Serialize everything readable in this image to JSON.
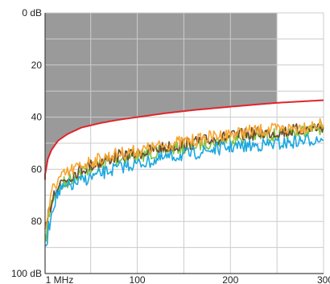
{
  "colors": {
    "background": "#ffffff",
    "plot_fill": "#ffffff",
    "grid": "#cccccc",
    "axis": "#444444",
    "shaded_region": "#9a9a9b",
    "limit_line": "#e0242b"
  },
  "chart_data": {
    "type": "line",
    "title": "",
    "xlabel": "",
    "ylabel": "",
    "x_tick_labels": [
      "1 MHz",
      "100",
      "200",
      "300"
    ],
    "x_tick_values": [
      1,
      100,
      200,
      300
    ],
    "y_tick_labels": [
      "0 dB",
      "20",
      "40",
      "60",
      "80",
      "100 dB"
    ],
    "y_tick_values": [
      0,
      20,
      40,
      60,
      80,
      100
    ],
    "xlim": [
      1,
      300
    ],
    "ylim": [
      100,
      0
    ],
    "y_axis_inverted": true,
    "grid": true,
    "legend": "none",
    "shaded_region": {
      "description": "gray area above limit line",
      "x_range": [
        1,
        250
      ],
      "color": "#9a9a9b"
    },
    "limit_line": {
      "color": "#e0242b",
      "x": [
        1,
        4,
        8,
        15,
        25,
        40,
        60,
        80,
        100,
        130,
        160,
        200,
        250,
        300
      ],
      "y": [
        62,
        56,
        52.5,
        49,
        46.5,
        44,
        42.3,
        41,
        40,
        38.5,
        37.3,
        36,
        34.5,
        33.5
      ]
    },
    "series": [
      {
        "color": "#7cc242",
        "x": [
          1,
          5,
          10,
          15,
          20,
          30,
          40,
          50,
          60,
          70,
          80,
          90,
          100,
          120,
          140,
          160,
          180,
          200,
          220,
          240,
          260,
          280,
          300
        ],
        "y": [
          88,
          78,
          70,
          67,
          66,
          63,
          61,
          59.5,
          58.5,
          57,
          56,
          55.5,
          55,
          53.5,
          52,
          51,
          49.5,
          48.5,
          47.5,
          47,
          46.5,
          45.5,
          44
        ]
      },
      {
        "color": "#6b4a2b",
        "x": [
          1,
          5,
          10,
          15,
          20,
          30,
          40,
          50,
          60,
          70,
          80,
          90,
          100,
          120,
          140,
          160,
          180,
          200,
          220,
          240,
          260,
          280,
          300
        ],
        "y": [
          86,
          77,
          69,
          66,
          64.5,
          62,
          60,
          58.5,
          57.5,
          56,
          55,
          54.5,
          54,
          52.5,
          51,
          50,
          48.5,
          47.5,
          46.5,
          46,
          45.5,
          44.5,
          43.5
        ]
      },
      {
        "color": "#f7a531",
        "x": [
          1,
          5,
          10,
          15,
          20,
          30,
          40,
          50,
          60,
          70,
          80,
          90,
          100,
          120,
          140,
          160,
          180,
          200,
          220,
          240,
          260,
          280,
          300
        ],
        "y": [
          84,
          75,
          67,
          64,
          63,
          60.5,
          58.5,
          57,
          56,
          55,
          54,
          53.5,
          53,
          51.5,
          50,
          49,
          47.5,
          46.5,
          45.5,
          45,
          44.5,
          43.5,
          43
        ]
      },
      {
        "color": "#1ca8e0",
        "x": [
          1,
          5,
          10,
          15,
          20,
          30,
          40,
          50,
          60,
          70,
          80,
          90,
          100,
          120,
          140,
          160,
          180,
          200,
          220,
          240,
          260,
          280,
          300
        ],
        "y": [
          92,
          82,
          73,
          69,
          68,
          66,
          64.5,
          63,
          62,
          60.5,
          59.5,
          58.5,
          58,
          56.5,
          55,
          54,
          52.5,
          51.5,
          51,
          50.5,
          50,
          49,
          48
        ]
      }
    ]
  }
}
